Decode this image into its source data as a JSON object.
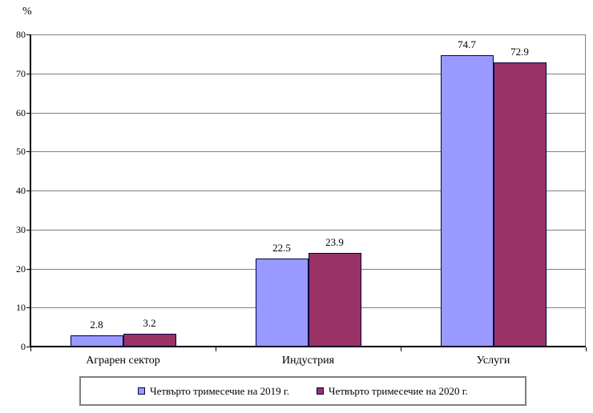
{
  "chart_data": {
    "type": "bar",
    "title": "",
    "xlabel": "",
    "ylabel": "%",
    "categories": [
      "Аграрен сектор",
      "Индустрия",
      "Услуги"
    ],
    "series": [
      {
        "name": "Четвърто тримесечие на 2019 г.",
        "values": [
          2.8,
          22.5,
          74.7
        ],
        "fill": "#9999ff",
        "border": "#000040"
      },
      {
        "name": "Четвърто тримесечие на 2020 г.",
        "values": [
          3.2,
          23.9,
          72.9
        ],
        "fill": "#993366",
        "border": "#000040"
      }
    ],
    "ylim": [
      0,
      80
    ],
    "ytick_step": 10,
    "ytick_labels": [
      "0",
      "10",
      "20",
      "30",
      "40",
      "50",
      "60",
      "70",
      "80"
    ],
    "value_labels": [
      [
        "2.8",
        "22.5",
        "74.7"
      ],
      [
        "3.2",
        "23.9",
        "72.9"
      ]
    ],
    "grid": true,
    "gridline_color": "#7f7f7f",
    "plot_background": "#ffffff",
    "legend_position": "bottom",
    "value_label_decimals": 1
  }
}
